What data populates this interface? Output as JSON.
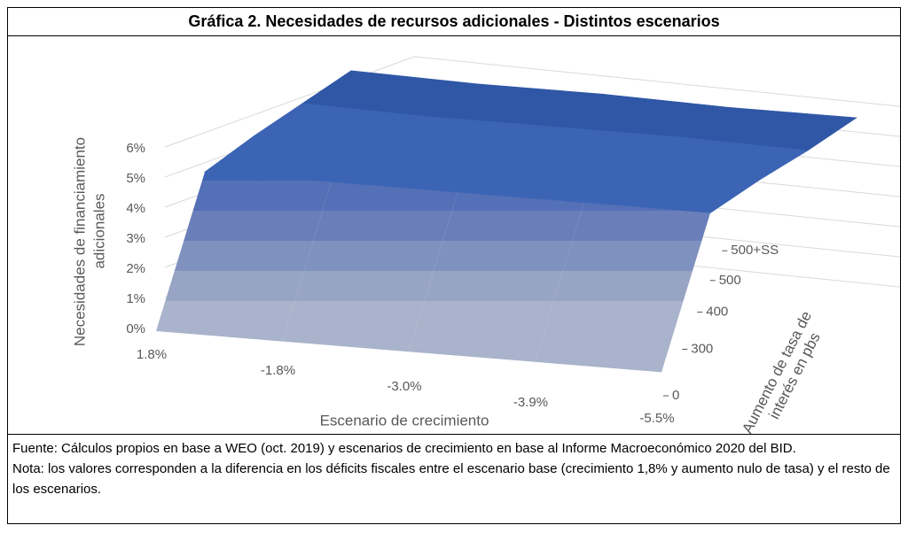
{
  "chart_data": {
    "type": "surface3d",
    "title": "Gráfica 2.  Necesidades de recursos adicionales - Distintos escenarios",
    "x_label": "Escenario de crecimiento",
    "y_label": [
      "Necesidades de financiamiento",
      "adicionales"
    ],
    "z_label": [
      "Aumento de tasa de",
      "interés en pbs"
    ],
    "categories": [
      "1.8%",
      "-1.8%",
      "-3.0%",
      "-3.9%",
      "-5.5%"
    ],
    "depth_categories": [
      "0",
      "300",
      "400",
      "500",
      "500+SS"
    ],
    "series": [
      {
        "name": "0",
        "values": [
          0,
          0.1,
          0.2,
          0.3,
          0.4
        ]
      },
      {
        "name": "300",
        "values": [
          4.7,
          4.8,
          4.9,
          5.0,
          5.1
        ]
      },
      {
        "name": "400",
        "values": [
          5.3,
          5.4,
          5.5,
          5.5,
          5.6
        ]
      },
      {
        "name": "500",
        "values": [
          5.8,
          5.8,
          5.9,
          6.0,
          6.0
        ]
      },
      {
        "name": "500+SS",
        "values": [
          6.3,
          6.3,
          6.4,
          6.4,
          6.5
        ]
      }
    ],
    "ylim": [
      0,
      6
    ],
    "yticks": [
      {
        "value": 0,
        "label": "0%"
      },
      {
        "value": 1,
        "label": "1%"
      },
      {
        "value": 2,
        "label": "2%"
      },
      {
        "value": 3,
        "label": "3%"
      },
      {
        "value": 4,
        "label": "4%"
      },
      {
        "value": 5,
        "label": "5%"
      },
      {
        "value": 6,
        "label": "6%"
      }
    ],
    "band_colors": [
      "#a9b3cb",
      "#97a4c4",
      "#7f91bf",
      "#6a7fba",
      "#5470b6",
      "#3c64b5",
      "#2f57a6"
    ],
    "grid": true
  },
  "footer": {
    "source": "Fuente: Cálculos propios en base a WEO (oct. 2019) y escenarios de crecimiento en base al Informe Macroeconómico 2020 del BID.",
    "note": "Nota: los valores corresponden a la diferencia en los déficits fiscales entre el escenario base (crecimiento 1,8% y aumento nulo de tasa) y el resto de los escenarios."
  }
}
